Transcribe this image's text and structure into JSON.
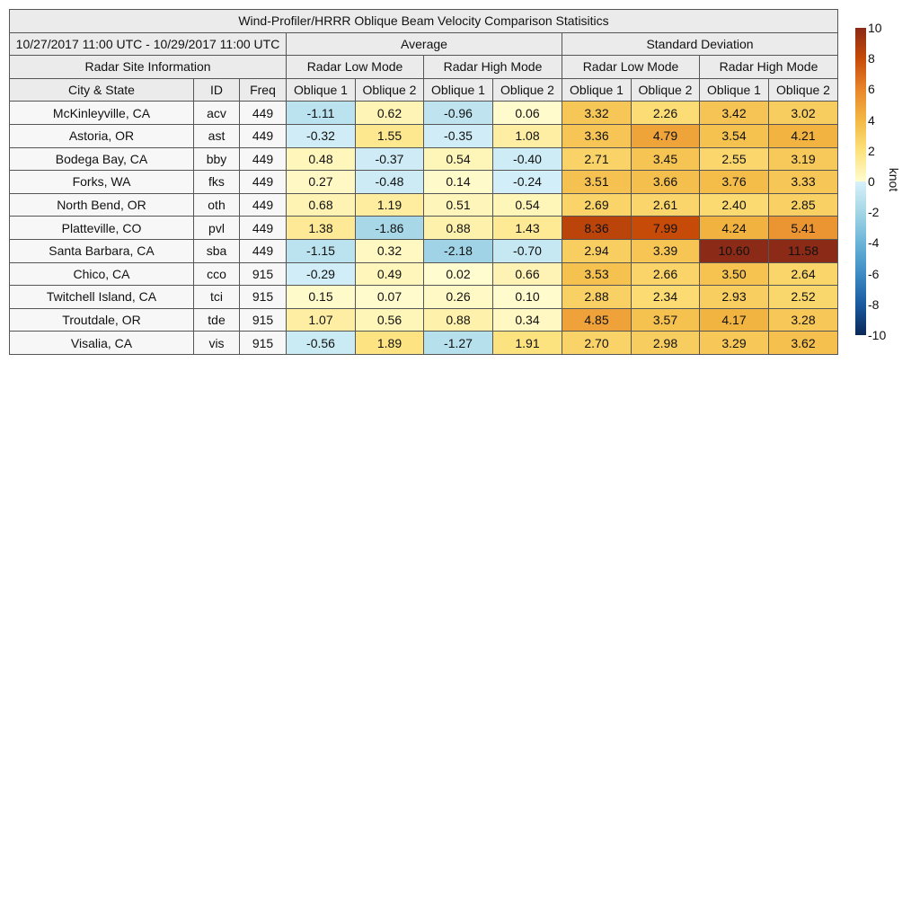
{
  "title": "Wind-Profiler/HRRR Oblique Beam Velocity Comparison Statisitics",
  "date_range": "10/27/2017 11:00 UTC - 10/29/2017 11:00 UTC",
  "groups": [
    "Average",
    "Standard Deviation"
  ],
  "site_info_label": "Radar Site Information",
  "modes": [
    "Radar Low Mode",
    "Radar High Mode",
    "Radar Low Mode",
    "Radar High Mode"
  ],
  "columns": [
    "City & State",
    "ID",
    "Freq",
    "Oblique 1",
    "Oblique 2",
    "Oblique 1",
    "Oblique 2",
    "Oblique 1",
    "Oblique 2",
    "Oblique 1",
    "Oblique 2"
  ],
  "chart_data": {
    "type": "table",
    "title": "Wind-Profiler/HRRR Oblique Beam Velocity Comparison Statisitics",
    "rows": [
      {
        "city": "McKinleyville, CA",
        "id": "acv",
        "freq": "449",
        "values": [
          "-1.11",
          "0.62",
          "-0.96",
          "0.06",
          "3.32",
          "2.26",
          "3.42",
          "3.02"
        ]
      },
      {
        "city": "Astoria, OR",
        "id": "ast",
        "freq": "449",
        "values": [
          "-0.32",
          "1.55",
          "-0.35",
          "1.08",
          "3.36",
          "4.79",
          "3.54",
          "4.21"
        ]
      },
      {
        "city": "Bodega Bay, CA",
        "id": "bby",
        "freq": "449",
        "values": [
          "0.48",
          "-0.37",
          "0.54",
          "-0.40",
          "2.71",
          "3.45",
          "2.55",
          "3.19"
        ]
      },
      {
        "city": "Forks, WA",
        "id": "fks",
        "freq": "449",
        "values": [
          "0.27",
          "-0.48",
          "0.14",
          "-0.24",
          "3.51",
          "3.66",
          "3.76",
          "3.33"
        ]
      },
      {
        "city": "North Bend, OR",
        "id": "oth",
        "freq": "449",
        "values": [
          "0.68",
          "1.19",
          "0.51",
          "0.54",
          "2.69",
          "2.61",
          "2.40",
          "2.85"
        ]
      },
      {
        "city": "Platteville, CO",
        "id": "pvl",
        "freq": "449",
        "values": [
          "1.38",
          "-1.86",
          "0.88",
          "1.43",
          "8.36",
          "7.99",
          "4.24",
          "5.41"
        ]
      },
      {
        "city": "Santa Barbara, CA",
        "id": "sba",
        "freq": "449",
        "values": [
          "-1.15",
          "0.32",
          "-2.18",
          "-0.70",
          "2.94",
          "3.39",
          "10.60",
          "11.58"
        ]
      },
      {
        "city": "Chico, CA",
        "id": "cco",
        "freq": "915",
        "values": [
          "-0.29",
          "0.49",
          "0.02",
          "0.66",
          "3.53",
          "2.66",
          "3.50",
          "2.64"
        ]
      },
      {
        "city": "Twitchell Island, CA",
        "id": "tci",
        "freq": "915",
        "values": [
          "0.15",
          "0.07",
          "0.26",
          "0.10",
          "2.88",
          "2.34",
          "2.93",
          "2.52"
        ]
      },
      {
        "city": "Troutdale, OR",
        "id": "tde",
        "freq": "915",
        "values": [
          "1.07",
          "0.56",
          "0.88",
          "0.34",
          "4.85",
          "3.57",
          "4.17",
          "3.28"
        ]
      },
      {
        "city": "Visalia, CA",
        "id": "vis",
        "freq": "915",
        "values": [
          "-0.56",
          "1.89",
          "-1.27",
          "1.91",
          "2.70",
          "2.98",
          "3.29",
          "3.62"
        ]
      }
    ],
    "colorbar": {
      "label": "knot",
      "range": [
        -10,
        10
      ],
      "ticks": [
        "10",
        "8",
        "6",
        "4",
        "2",
        "0",
        "-2",
        "-4",
        "-6",
        "-8",
        "-10"
      ],
      "stops": [
        {
          "v": -10,
          "c": "#0a2858"
        },
        {
          "v": -8,
          "c": "#1a5aa0"
        },
        {
          "v": -6,
          "c": "#3d8cc4"
        },
        {
          "v": -4,
          "c": "#6bb4d8"
        },
        {
          "v": -2,
          "c": "#a4d6e6"
        },
        {
          "v": -0.01,
          "c": "#d8f1fa"
        },
        {
          "v": 0,
          "c": "#fffcd0"
        },
        {
          "v": 2,
          "c": "#fde27c"
        },
        {
          "v": 4,
          "c": "#f3b843"
        },
        {
          "v": 6,
          "c": "#e8852b"
        },
        {
          "v": 8,
          "c": "#c64a08"
        },
        {
          "v": 10,
          "c": "#8a2a17"
        }
      ]
    }
  }
}
